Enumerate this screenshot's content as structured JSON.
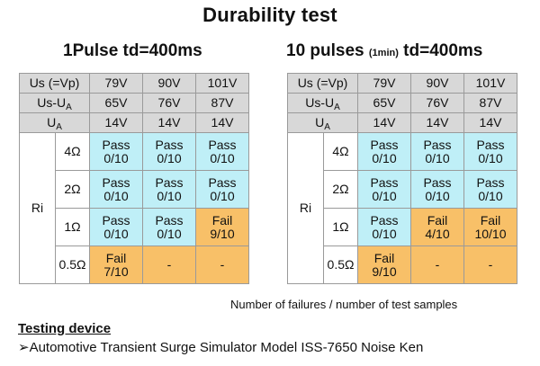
{
  "title": "Durability test",
  "subtitles": {
    "left": "1Pulse td=400ms",
    "right_main": "10 pulses",
    "right_small": "(1min)",
    "right_td": "td=400ms"
  },
  "row_labels": {
    "us_vp": "Us (=Vp)",
    "us_ua_main": "Us-U",
    "ua_sub": "A",
    "ua_main": "U",
    "ri": "Ri"
  },
  "tables": [
    {
      "id": "one-pulse",
      "us_vp": [
        "79V",
        "90V",
        "101V"
      ],
      "us_ua": [
        "65V",
        "76V",
        "87V"
      ],
      "ua": [
        "14V",
        "14V",
        "14V"
      ],
      "rows": [
        {
          "r": "4Ω",
          "cells": [
            {
              "status": "pass",
              "label": "Pass",
              "count": "0/10"
            },
            {
              "status": "pass",
              "label": "Pass",
              "count": "0/10"
            },
            {
              "status": "pass",
              "label": "Pass",
              "count": "0/10"
            }
          ]
        },
        {
          "r": "2Ω",
          "cells": [
            {
              "status": "pass",
              "label": "Pass",
              "count": "0/10"
            },
            {
              "status": "pass",
              "label": "Pass",
              "count": "0/10"
            },
            {
              "status": "pass",
              "label": "Pass",
              "count": "0/10"
            }
          ]
        },
        {
          "r": "1Ω",
          "cells": [
            {
              "status": "pass",
              "label": "Pass",
              "count": "0/10"
            },
            {
              "status": "pass",
              "label": "Pass",
              "count": "0/10"
            },
            {
              "status": "fail",
              "label": "Fail",
              "count": "9/10"
            }
          ]
        },
        {
          "r": "0.5Ω",
          "cells": [
            {
              "status": "fail",
              "label": "Fail",
              "count": "7/10"
            },
            {
              "status": "fail",
              "label": "-",
              "count": ""
            },
            {
              "status": "fail",
              "label": "-",
              "count": ""
            }
          ]
        }
      ]
    },
    {
      "id": "ten-pulses",
      "us_vp": [
        "79V",
        "90V",
        "101V"
      ],
      "us_ua": [
        "65V",
        "76V",
        "87V"
      ],
      "ua": [
        "14V",
        "14V",
        "14V"
      ],
      "rows": [
        {
          "r": "4Ω",
          "cells": [
            {
              "status": "pass",
              "label": "Pass",
              "count": "0/10"
            },
            {
              "status": "pass",
              "label": "Pass",
              "count": "0/10"
            },
            {
              "status": "pass",
              "label": "Pass",
              "count": "0/10"
            }
          ]
        },
        {
          "r": "2Ω",
          "cells": [
            {
              "status": "pass",
              "label": "Pass",
              "count": "0/10"
            },
            {
              "status": "pass",
              "label": "Pass",
              "count": "0/10"
            },
            {
              "status": "pass",
              "label": "Pass",
              "count": "0/10"
            }
          ]
        },
        {
          "r": "1Ω",
          "cells": [
            {
              "status": "pass",
              "label": "Pass",
              "count": "0/10"
            },
            {
              "status": "fail",
              "label": "Fail",
              "count": "4/10"
            },
            {
              "status": "fail",
              "label": "Fail",
              "count": "10/10"
            }
          ]
        },
        {
          "r": "0.5Ω",
          "cells": [
            {
              "status": "fail",
              "label": "Fail",
              "count": "9/10"
            },
            {
              "status": "fail",
              "label": "-",
              "count": ""
            },
            {
              "status": "fail",
              "label": "-",
              "count": ""
            }
          ]
        }
      ]
    }
  ],
  "note": "Number of failures / number of test samples",
  "device": {
    "heading": "Testing device",
    "bullet": "➢",
    "text": "Automotive Transient Surge Simulator Model ISS-7650 Noise Ken"
  },
  "colors": {
    "pass": "#bfeff7",
    "fail": "#f8c068",
    "header": "#d8d8d8"
  }
}
